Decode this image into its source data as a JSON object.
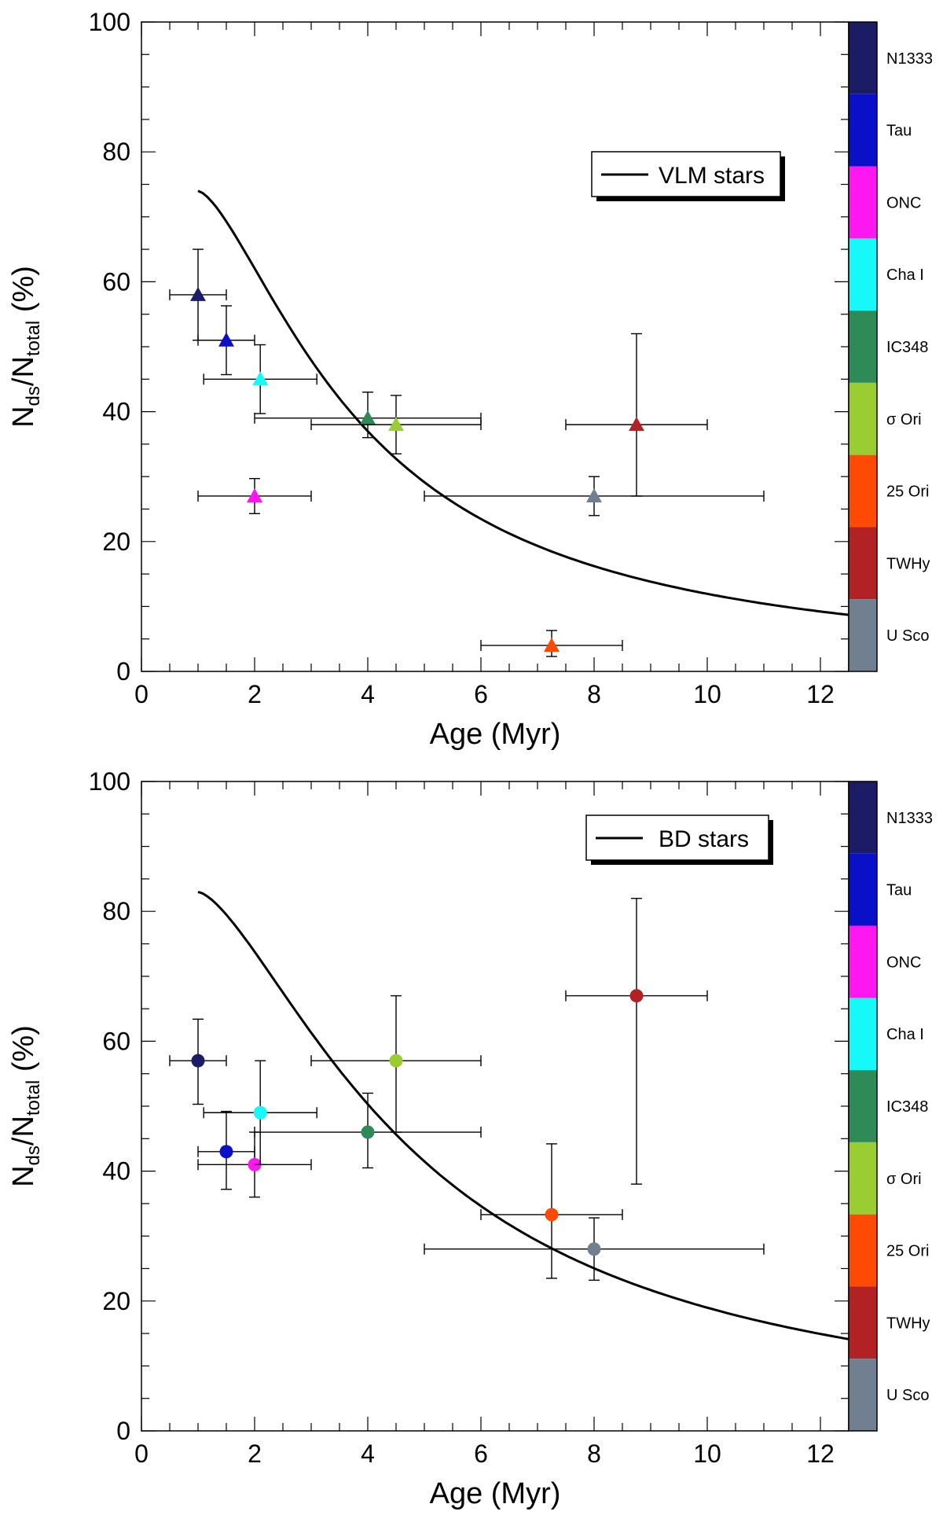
{
  "chart_data": [
    {
      "type": "scatter",
      "panel": "top",
      "marker": "triangle",
      "xlabel": "Age (Myr)",
      "ylabel_main": "N",
      "ylabel_sub1": "ds",
      "ylabel_mid": "/N",
      "ylabel_sub2": "total",
      "ylabel_tail": " (%)",
      "xlim": [
        0,
        12.5
      ],
      "ylim": [
        0,
        100
      ],
      "xticks": [
        0,
        2,
        4,
        6,
        8,
        10,
        12
      ],
      "yticks": [
        0,
        20,
        40,
        60,
        80,
        100
      ],
      "legend_label": "VLM stars",
      "legend_position": "top-right",
      "points": [
        {
          "cluster": "N1333",
          "x": 1.0,
          "y": 58,
          "xerr": [
            0.5,
            1.5
          ],
          "yerr": [
            51,
            65
          ]
        },
        {
          "cluster": "Tau",
          "x": 1.5,
          "y": 51,
          "xerr": [
            1.0,
            2.0
          ],
          "yerr": [
            45.7,
            56.3
          ]
        },
        {
          "cluster": "ONC",
          "x": 2.0,
          "y": 27,
          "xerr": [
            1.0,
            3.0
          ],
          "yerr": [
            24.3,
            29.7
          ]
        },
        {
          "cluster": "Cha I",
          "x": 2.1,
          "y": 45,
          "xerr": [
            1.1,
            3.1
          ],
          "yerr": [
            39.7,
            50.3
          ]
        },
        {
          "cluster": "IC348",
          "x": 4.0,
          "y": 39,
          "xerr": [
            2.0,
            6.0
          ],
          "yerr": [
            36,
            43
          ]
        },
        {
          "cluster": "σ Ori",
          "x": 4.5,
          "y": 38,
          "xerr": [
            3.0,
            6.0
          ],
          "yerr": [
            33.5,
            42.5
          ]
        },
        {
          "cluster": "25 Ori",
          "x": 7.25,
          "y": 4,
          "xerr": [
            6.0,
            8.5
          ],
          "yerr": [
            2.3,
            6.3
          ]
        },
        {
          "cluster": "TWHy",
          "x": 8.75,
          "y": 38,
          "xerr": [
            7.5,
            10.0
          ],
          "yerr": [
            27,
            52
          ]
        },
        {
          "cluster": "U Sco",
          "x": 8.0,
          "y": 27,
          "xerr": [
            5.0,
            11.0
          ],
          "yerr": [
            24,
            30
          ]
        }
      ],
      "curve": {
        "A": 74,
        "tau": 3.0,
        "n": 1.5,
        "x_start": 1.0,
        "x_end": 12.5
      }
    },
    {
      "type": "scatter",
      "panel": "bottom",
      "marker": "circle",
      "xlabel": "Age (Myr)",
      "ylabel_main": "N",
      "ylabel_sub1": "ds",
      "ylabel_mid": "/N",
      "ylabel_sub2": "total",
      "ylabel_tail": " (%)",
      "xlim": [
        0,
        12.5
      ],
      "ylim": [
        0,
        100
      ],
      "xticks": [
        0,
        2,
        4,
        6,
        8,
        10,
        12
      ],
      "yticks": [
        0,
        20,
        40,
        60,
        80,
        100
      ],
      "legend_label": "BD stars",
      "legend_position": "top-right",
      "points": [
        {
          "cluster": "N1333",
          "x": 1.0,
          "y": 57,
          "xerr": [
            0.5,
            1.5
          ],
          "yerr": [
            50.3,
            63.4
          ]
        },
        {
          "cluster": "Tau",
          "x": 1.5,
          "y": 43,
          "xerr": [
            1.0,
            2.0
          ],
          "yerr": [
            37.2,
            49.2
          ]
        },
        {
          "cluster": "ONC",
          "x": 2.0,
          "y": 41,
          "xerr": [
            1.0,
            3.0
          ],
          "yerr": [
            36,
            46
          ]
        },
        {
          "cluster": "Cha I",
          "x": 2.1,
          "y": 49,
          "xerr": [
            1.1,
            3.1
          ],
          "yerr": [
            41,
            57
          ]
        },
        {
          "cluster": "IC348",
          "x": 4.0,
          "y": 46,
          "xerr": [
            2.0,
            6.0
          ],
          "yerr": [
            40.5,
            52
          ]
        },
        {
          "cluster": "σ Ori",
          "x": 4.5,
          "y": 57,
          "xerr": [
            3.0,
            6.0
          ],
          "yerr": [
            46,
            67
          ]
        },
        {
          "cluster": "25 Ori",
          "x": 7.25,
          "y": 33.3,
          "xerr": [
            6.0,
            8.5
          ],
          "yerr": [
            23.5,
            44.2
          ]
        },
        {
          "cluster": "TWHy",
          "x": 8.75,
          "y": 67,
          "xerr": [
            7.5,
            10.0
          ],
          "yerr": [
            38,
            82
          ]
        },
        {
          "cluster": "U Sco",
          "x": 8.0,
          "y": 28,
          "xerr": [
            5.0,
            11.0
          ],
          "yerr": [
            23.2,
            32.8
          ]
        }
      ],
      "curve": {
        "A": 83,
        "tau": 4.0,
        "n": 1.5,
        "x_start": 1.0,
        "x_end": 12.5
      }
    }
  ],
  "colorbar": [
    {
      "label": "N1333",
      "color": "#1c1c66"
    },
    {
      "label": "Tau",
      "color": "#0a10c8"
    },
    {
      "label": "ONC",
      "color": "#ff17f2"
    },
    {
      "label": "Cha I",
      "color": "#17f8f8"
    },
    {
      "label": "IC348",
      "color": "#2e8b57"
    },
    {
      "label": "σ Ori",
      "color": "#9acd32"
    },
    {
      "label": "25 Ori",
      "color": "#ff4a05"
    },
    {
      "label": "TWHy",
      "color": "#b22225"
    },
    {
      "label": "U Sco",
      "color": "#708090"
    }
  ]
}
